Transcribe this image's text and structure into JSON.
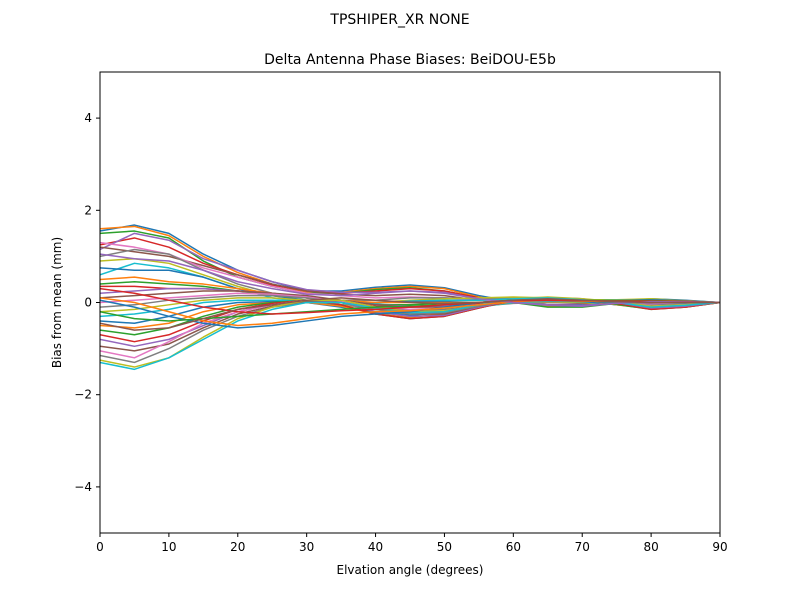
{
  "chart_data": {
    "type": "line",
    "suptitle": "TPSHIPER_XR     NONE",
    "title": "Delta Antenna Phase Biases: BeiDOU-E5b",
    "xlabel": "Elvation angle (degrees)",
    "ylabel": "Bias from mean (mm)",
    "xlim": [
      0,
      90
    ],
    "ylim": [
      -5,
      5
    ],
    "xticks": [
      0,
      10,
      20,
      30,
      40,
      50,
      60,
      70,
      80,
      90
    ],
    "yticks": [
      -4,
      -2,
      0,
      2,
      4
    ],
    "ytick_labels": [
      "−4",
      "−2",
      "0",
      "2",
      "4"
    ],
    "grid": false,
    "legend": "none",
    "x": [
      0,
      5,
      10,
      15,
      20,
      25,
      30,
      35,
      40,
      45,
      50,
      55,
      60,
      65,
      70,
      75,
      80,
      85,
      90
    ],
    "series": [
      {
        "values": [
          1.55,
          1.68,
          1.5,
          1.05,
          0.7,
          0.45,
          0.25,
          0.25,
          0.33,
          0.38,
          0.32,
          0.15,
          0.02,
          -0.05,
          -0.05,
          0.02,
          0.08,
          0.05,
          0.0
        ]
      },
      {
        "values": [
          1.6,
          1.65,
          1.45,
          1.0,
          0.65,
          0.4,
          0.22,
          0.22,
          0.3,
          0.35,
          0.3,
          0.12,
          0.0,
          -0.08,
          -0.08,
          0.0,
          0.05,
          0.03,
          0.0
        ]
      },
      {
        "values": [
          1.5,
          1.55,
          1.4,
          0.9,
          0.55,
          0.35,
          0.2,
          0.2,
          0.28,
          0.32,
          0.25,
          0.1,
          0.0,
          -0.1,
          -0.1,
          -0.02,
          0.04,
          0.02,
          0.0
        ]
      },
      {
        "values": [
          1.25,
          1.4,
          1.2,
          0.85,
          0.6,
          0.38,
          0.25,
          0.2,
          0.25,
          0.3,
          0.25,
          0.1,
          0.02,
          -0.05,
          -0.06,
          0.0,
          0.04,
          0.02,
          0.0
        ]
      },
      {
        "values": [
          1.15,
          1.5,
          1.35,
          0.95,
          0.7,
          0.45,
          0.28,
          0.22,
          0.22,
          0.25,
          0.2,
          0.08,
          0.0,
          -0.06,
          -0.08,
          -0.02,
          0.02,
          0.01,
          0.0
        ]
      },
      {
        "values": [
          1.2,
          1.1,
          1.0,
          0.8,
          0.6,
          0.4,
          0.25,
          0.18,
          0.15,
          0.18,
          0.15,
          0.05,
          0.02,
          0.0,
          -0.02,
          0.0,
          0.03,
          0.02,
          0.0
        ]
      },
      {
        "values": [
          1.3,
          1.2,
          1.05,
          0.75,
          0.55,
          0.35,
          0.2,
          0.15,
          0.1,
          0.12,
          0.1,
          0.05,
          0.05,
          0.02,
          0.0,
          0.02,
          0.05,
          0.03,
          0.0
        ]
      },
      {
        "values": [
          1.0,
          1.15,
          1.05,
          0.7,
          0.4,
          0.2,
          0.1,
          0.05,
          0.05,
          0.1,
          0.1,
          0.08,
          0.1,
          0.08,
          0.05,
          0.05,
          0.06,
          0.03,
          0.0
        ]
      },
      {
        "values": [
          0.9,
          0.95,
          0.85,
          0.6,
          0.35,
          0.15,
          0.05,
          0.0,
          0.0,
          0.05,
          0.08,
          0.1,
          0.12,
          0.1,
          0.06,
          0.06,
          0.08,
          0.04,
          0.0
        ]
      },
      {
        "values": [
          0.6,
          0.85,
          0.75,
          0.55,
          0.3,
          0.1,
          0.0,
          -0.05,
          -0.02,
          0.03,
          0.05,
          0.05,
          0.08,
          0.08,
          0.05,
          0.05,
          0.05,
          0.03,
          0.0
        ]
      },
      {
        "values": [
          0.75,
          0.7,
          0.7,
          0.55,
          0.3,
          0.15,
          0.05,
          0.0,
          0.0,
          0.02,
          0.02,
          0.0,
          0.05,
          0.05,
          0.04,
          0.04,
          0.06,
          0.04,
          0.0
        ]
      },
      {
        "values": [
          0.5,
          0.55,
          0.45,
          0.4,
          0.3,
          0.2,
          0.1,
          0.05,
          0.0,
          0.0,
          0.0,
          0.0,
          0.03,
          0.03,
          0.02,
          0.02,
          0.04,
          0.03,
          0.0
        ]
      },
      {
        "values": [
          0.4,
          0.45,
          0.4,
          0.35,
          0.25,
          0.15,
          0.1,
          0.05,
          -0.05,
          -0.05,
          -0.02,
          0.0,
          0.05,
          0.05,
          0.03,
          0.03,
          0.04,
          0.02,
          0.0
        ]
      },
      {
        "values": [
          0.35,
          0.35,
          0.3,
          0.3,
          0.25,
          0.2,
          0.1,
          0.0,
          -0.08,
          -0.1,
          -0.08,
          -0.02,
          0.02,
          0.02,
          0.0,
          0.0,
          0.02,
          0.01,
          0.0
        ]
      },
      {
        "values": [
          0.2,
          0.25,
          0.3,
          0.3,
          0.25,
          0.2,
          0.12,
          0.05,
          -0.05,
          -0.08,
          -0.08,
          -0.05,
          0.0,
          0.02,
          0.0,
          -0.02,
          0.0,
          0.0,
          0.0
        ]
      },
      {
        "values": [
          0.1,
          0.15,
          0.2,
          0.25,
          0.25,
          0.2,
          0.15,
          0.05,
          -0.05,
          -0.1,
          -0.1,
          -0.05,
          0.0,
          0.0,
          0.0,
          -0.02,
          -0.02,
          0.0,
          0.0
        ]
      },
      {
        "values": [
          0.0,
          0.05,
          0.1,
          0.15,
          0.2,
          0.18,
          0.12,
          0.02,
          -0.1,
          -0.15,
          -0.12,
          -0.05,
          0.0,
          0.0,
          0.0,
          -0.03,
          -0.04,
          -0.02,
          0.0
        ]
      },
      {
        "values": [
          -0.1,
          -0.05,
          0.05,
          0.1,
          0.15,
          0.15,
          0.1,
          0.0,
          -0.12,
          -0.18,
          -0.15,
          -0.08,
          -0.02,
          0.0,
          0.0,
          -0.04,
          -0.06,
          -0.03,
          0.0
        ]
      },
      {
        "values": [
          -0.2,
          -0.15,
          -0.05,
          0.05,
          0.1,
          0.1,
          0.05,
          -0.05,
          -0.15,
          -0.2,
          -0.18,
          -0.08,
          0.0,
          0.02,
          0.0,
          -0.04,
          -0.08,
          -0.05,
          0.0
        ]
      },
      {
        "values": [
          -0.3,
          -0.25,
          -0.15,
          0.0,
          0.05,
          0.05,
          0.02,
          -0.08,
          -0.2,
          -0.25,
          -0.2,
          -0.1,
          0.0,
          0.03,
          0.02,
          -0.05,
          -0.1,
          -0.06,
          0.0
        ]
      },
      {
        "values": [
          -0.4,
          -0.45,
          -0.3,
          -0.1,
          0.0,
          0.02,
          0.0,
          -0.1,
          -0.22,
          -0.28,
          -0.22,
          -0.1,
          0.02,
          0.05,
          0.03,
          -0.05,
          -0.12,
          -0.08,
          0.0
        ]
      },
      {
        "values": [
          -0.5,
          -0.55,
          -0.45,
          -0.2,
          -0.05,
          0.0,
          0.0,
          -0.08,
          -0.25,
          -0.32,
          -0.25,
          -0.1,
          0.02,
          0.08,
          0.05,
          -0.05,
          -0.14,
          -0.1,
          0.0
        ]
      },
      {
        "values": [
          -0.6,
          -0.7,
          -0.55,
          -0.3,
          -0.1,
          0.0,
          0.05,
          -0.05,
          -0.25,
          -0.35,
          -0.3,
          -0.12,
          0.05,
          0.1,
          0.06,
          -0.04,
          -0.15,
          -0.1,
          0.0
        ]
      },
      {
        "values": [
          -0.7,
          -0.85,
          -0.7,
          -0.4,
          -0.15,
          -0.02,
          0.05,
          -0.05,
          -0.25,
          -0.35,
          -0.3,
          -0.12,
          0.05,
          0.1,
          0.08,
          -0.02,
          -0.15,
          -0.1,
          0.0
        ]
      },
      {
        "values": [
          -0.8,
          -0.95,
          -0.8,
          -0.5,
          -0.2,
          -0.05,
          0.05,
          0.0,
          -0.2,
          -0.3,
          -0.28,
          -0.1,
          0.05,
          0.1,
          0.08,
          0.0,
          -0.12,
          -0.08,
          0.0
        ]
      },
      {
        "values": [
          -0.95,
          -1.05,
          -0.9,
          -0.55,
          -0.25,
          -0.08,
          0.02,
          0.0,
          -0.15,
          -0.25,
          -0.25,
          -0.08,
          0.05,
          0.08,
          0.06,
          0.0,
          -0.1,
          -0.06,
          0.0
        ]
      },
      {
        "values": [
          -1.05,
          -1.2,
          -0.85,
          -0.45,
          -0.2,
          -0.05,
          0.05,
          0.05,
          -0.1,
          -0.2,
          -0.2,
          -0.05,
          0.05,
          0.08,
          0.05,
          0.0,
          -0.08,
          -0.05,
          0.0
        ]
      },
      {
        "values": [
          -1.15,
          -1.3,
          -1.0,
          -0.6,
          -0.3,
          -0.1,
          0.0,
          0.0,
          -0.15,
          -0.25,
          -0.22,
          -0.08,
          0.05,
          0.1,
          0.06,
          0.0,
          -0.1,
          -0.06,
          0.0
        ]
      },
      {
        "values": [
          -1.25,
          -1.4,
          -1.2,
          -0.75,
          -0.35,
          -0.1,
          0.05,
          0.05,
          -0.1,
          -0.2,
          -0.2,
          -0.05,
          0.08,
          0.12,
          0.08,
          0.02,
          -0.08,
          -0.05,
          0.0
        ]
      },
      {
        "values": [
          -1.3,
          -1.45,
          -1.2,
          -0.8,
          -0.4,
          -0.15,
          0.0,
          0.0,
          -0.12,
          -0.22,
          -0.2,
          -0.05,
          0.08,
          0.1,
          0.06,
          0.0,
          -0.1,
          -0.06,
          0.0
        ]
      },
      {
        "values": [
          0.05,
          -0.1,
          -0.3,
          -0.45,
          -0.55,
          -0.5,
          -0.4,
          -0.3,
          -0.25,
          -0.2,
          -0.1,
          0.0,
          0.05,
          0.05,
          0.02,
          0.0,
          0.0,
          0.0,
          0.0
        ]
      },
      {
        "values": [
          0.1,
          0.0,
          -0.2,
          -0.4,
          -0.5,
          -0.45,
          -0.35,
          -0.25,
          -0.2,
          -0.18,
          -0.12,
          -0.05,
          0.02,
          0.05,
          0.03,
          0.02,
          0.02,
          0.01,
          0.0
        ]
      },
      {
        "values": [
          -0.2,
          -0.35,
          -0.4,
          -0.35,
          -0.3,
          -0.25,
          -0.2,
          -0.15,
          -0.1,
          -0.08,
          -0.05,
          0.0,
          0.05,
          0.06,
          0.05,
          0.04,
          0.04,
          0.02,
          0.0
        ]
      },
      {
        "values": [
          0.3,
          0.2,
          0.05,
          -0.1,
          -0.2,
          -0.25,
          -0.22,
          -0.18,
          -0.15,
          -0.1,
          -0.05,
          0.0,
          0.04,
          0.05,
          0.04,
          0.03,
          0.03,
          0.02,
          0.0
        ]
      },
      {
        "values": [
          1.05,
          0.95,
          0.9,
          0.7,
          0.45,
          0.3,
          0.18,
          0.15,
          0.2,
          0.25,
          0.22,
          0.08,
          0.0,
          -0.05,
          -0.06,
          -0.02,
          0.02,
          0.01,
          0.0
        ]
      },
      {
        "values": [
          -0.45,
          -0.6,
          -0.55,
          -0.35,
          -0.15,
          -0.05,
          0.05,
          0.1,
          0.05,
          0.0,
          -0.02,
          0.0,
          0.05,
          0.08,
          0.05,
          0.02,
          0.0,
          0.0,
          0.0
        ]
      }
    ]
  }
}
